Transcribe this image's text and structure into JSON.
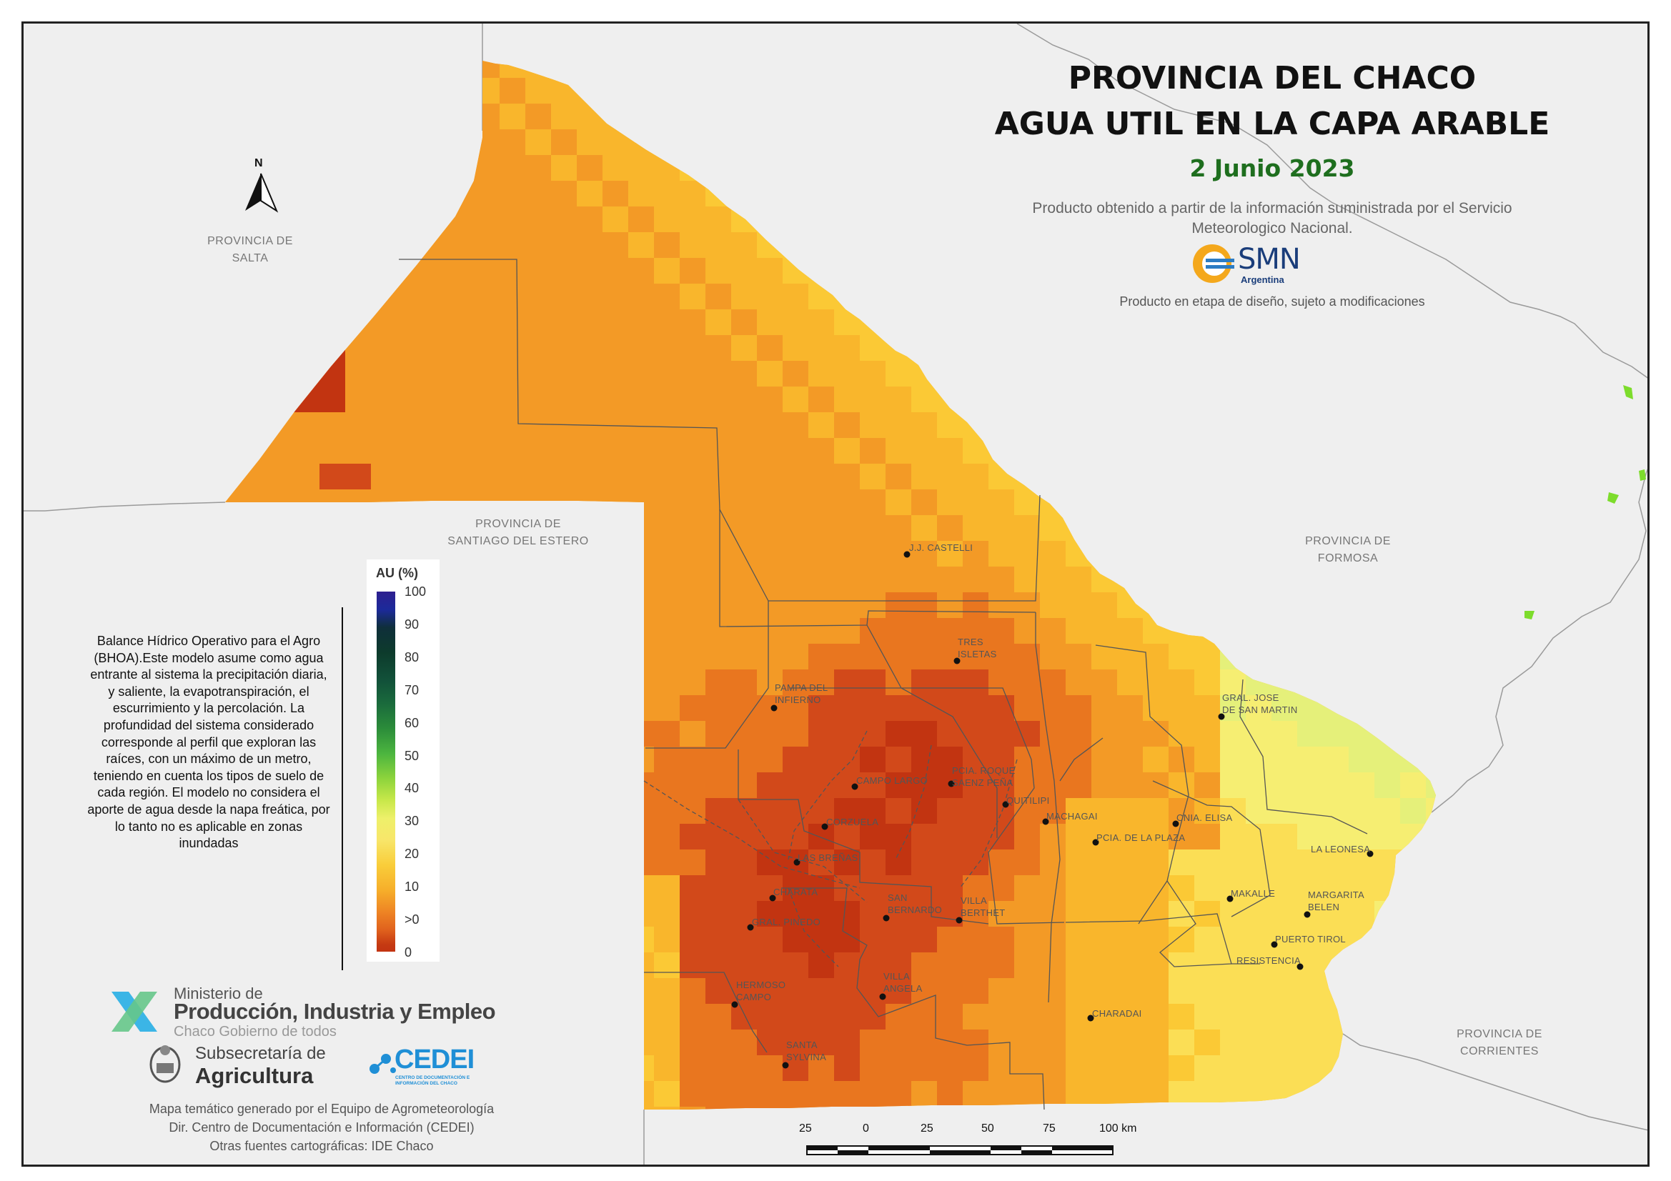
{
  "title_line1": "PROVINCIA DEL CHACO",
  "title_line2": "AGUA UTIL EN LA CAPA ARABLE",
  "date": "2 Junio 2023",
  "source_line1": "Producto obtenido a partir de la información suministrada por el Servicio",
  "source_line2": "Meteorologico Nacional.",
  "smn_logo_text": "SMN",
  "smn_logo_subtext": "Argentina",
  "disclaimer": "Producto en etapa de diseño, sujeto a modificaciones",
  "provinces": {
    "salta": [
      "PROVINCIA DE",
      "SALTA"
    ],
    "santiago": [
      "PROVINCIA DE",
      "SANTIAGO DEL ESTERO"
    ],
    "formosa": [
      "PROVINCIA DE",
      "FORMOSA"
    ],
    "corrientes": [
      "PROVINCIA DE",
      "CORRIENTES"
    ]
  },
  "north_label": "N",
  "legend": {
    "title": "AU (%)",
    "labels": [
      "100",
      "90",
      "80",
      "70",
      "60",
      "50",
      "40",
      "30",
      "20",
      "10",
      ">0",
      "0"
    ]
  },
  "description": "Balance Hídrico Operativo para el Agro (BHOA).Este modelo asume como agua entrante al sistema la precipitación diaria, y saliente, la evapotranspiración, el escurrimiento y la percolación. La profundidad del sistema considerado corresponde al perfil que exploran las raíces, con un máximo de un metro, teniendo en cuenta los tipos de suelo de cada región. El modelo no considera el aporte de agua desde la napa freática, por lo tanto no es aplicable en zonas inundadas",
  "logos": {
    "ministry_line1": "Ministerio de",
    "ministry_line2": "Producción, Industria y Empleo",
    "ministry_line3": "Chaco Gobierno de todos",
    "sub_line1": "Subsecretaría de",
    "sub_line2": "Agricultura",
    "cedei": "CEDEI",
    "cedei_sub": "CENTRO DE DOCUMENTACIÓN E INFORMACIÓN DEL CHACO"
  },
  "credits": [
    "Mapa temático generado por el Equipo de Agrometeorología",
    "Dir. Centro de Documentación e Información (CEDEI)",
    "Otras fuentes cartográficas: IDE Chaco"
  ],
  "scale": {
    "labels": [
      "25",
      "0",
      "25",
      "50",
      "75",
      "100 km"
    ]
  },
  "cities": [
    {
      "name": "J.J. CASTELLI",
      "lines": [
        "J.J. CASTELLI"
      ]
    },
    {
      "name": "TRES ISLETAS",
      "lines": [
        "TRES",
        "ISLETAS"
      ]
    },
    {
      "name": "PAMPA DEL INFIERNO",
      "lines": [
        "PAMPA DEL",
        "INFIERNO"
      ]
    },
    {
      "name": "GRAL. JOSE DE SAN MARTIN",
      "lines": [
        "GRAL. JOSE",
        "DE SAN MARTIN"
      ]
    },
    {
      "name": "CAMPO LARGO",
      "lines": [
        "CAMPO LARGO"
      ]
    },
    {
      "name": "PCIA. ROQUE SAENZ PEÑA",
      "lines": [
        "PCIA. ROQUE",
        "SAENZ PEÑA"
      ]
    },
    {
      "name": "QUITILIPI",
      "lines": [
        "QUITILIPI"
      ]
    },
    {
      "name": "MACHAGAI",
      "lines": [
        "MACHAGAI"
      ]
    },
    {
      "name": "CNIA. ELISA",
      "lines": [
        "CNIA. ELISA"
      ]
    },
    {
      "name": "CORZUELA",
      "lines": [
        "CORZUELA"
      ]
    },
    {
      "name": "PCIA. DE LA PLAZA",
      "lines": [
        "PCIA. DE LA PLAZA"
      ]
    },
    {
      "name": "LA LEONESA",
      "lines": [
        "LA LEONESA"
      ]
    },
    {
      "name": "LAS BREÑAS",
      "lines": [
        "LAS BREÑAS"
      ]
    },
    {
      "name": "CHARATA",
      "lines": [
        "CHARATA"
      ]
    },
    {
      "name": "MAKALLE",
      "lines": [
        "MAKALLE"
      ]
    },
    {
      "name": "MARGARITA BELEN",
      "lines": [
        "MARGARITA",
        "BELEN"
      ]
    },
    {
      "name": "SAN BERNARDO",
      "lines": [
        "SAN",
        "BERNARDO"
      ]
    },
    {
      "name": "VILLA BERTHET",
      "lines": [
        "VILLA",
        "BERTHET"
      ]
    },
    {
      "name": "GRAL. PINEDO",
      "lines": [
        "GRAL. PINEDO"
      ]
    },
    {
      "name": "PUERTO TIROL",
      "lines": [
        "PUERTO TIROL"
      ]
    },
    {
      "name": "RESISTENCIA",
      "lines": [
        "RESISTENCIA"
      ]
    },
    {
      "name": "VILLA ANGELA",
      "lines": [
        "VILLA",
        "ANGELA"
      ]
    },
    {
      "name": "HERMOSO CAMPO",
      "lines": [
        "HERMOSO",
        "CAMPO"
      ]
    },
    {
      "name": "CHARADAI",
      "lines": [
        "CHARADAI"
      ]
    },
    {
      "name": "SANTA SYLVINA",
      "lines": [
        "SANTA",
        "SYLVINA"
      ]
    }
  ]
}
